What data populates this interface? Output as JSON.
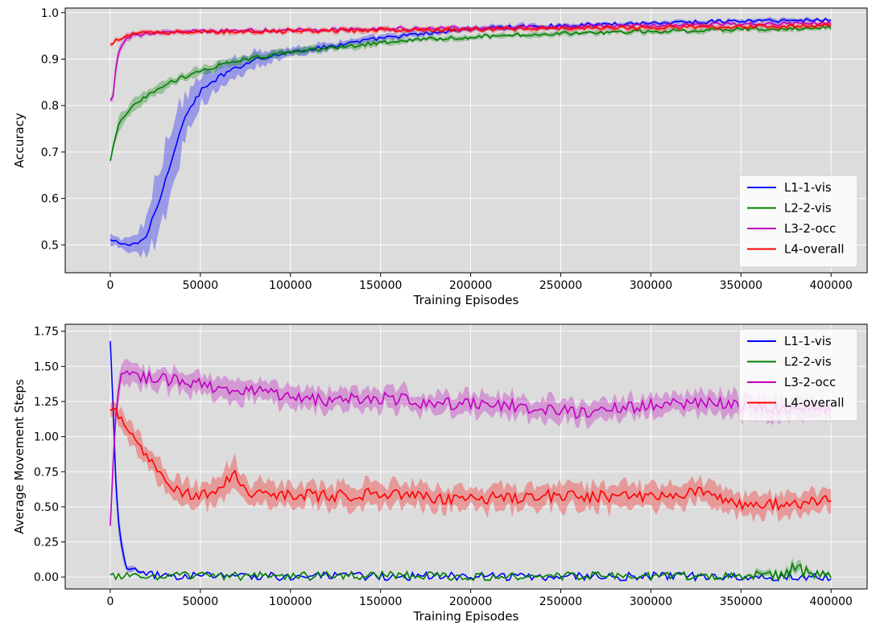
{
  "chart_data": [
    {
      "type": "line",
      "xlabel": "Training Episodes",
      "ylabel": "Accuracy",
      "xlim": [
        -25000,
        420000
      ],
      "ylim": [
        0.44,
        1.01
      ],
      "xticks": [
        0,
        50000,
        100000,
        150000,
        200000,
        250000,
        300000,
        350000,
        400000
      ],
      "yticks": [
        0.5,
        0.6,
        0.7,
        0.8,
        0.9,
        1.0
      ],
      "ytick_labels": [
        "0.5",
        "0.6",
        "0.7",
        "0.8",
        "0.9",
        "1.0"
      ],
      "grid": true,
      "legend_position": "lower-right",
      "series": [
        {
          "name": "L1-1-vis",
          "color": "#0000ff",
          "x": [
            0,
            5000,
            10000,
            15000,
            20000,
            25000,
            30000,
            35000,
            40000,
            45000,
            50000,
            60000,
            70000,
            80000,
            100000,
            125000,
            150000,
            175000,
            200000,
            225000,
            250000,
            275000,
            300000,
            325000,
            350000,
            375000,
            400000
          ],
          "y": [
            0.51,
            0.505,
            0.5,
            0.5,
            0.52,
            0.57,
            0.63,
            0.7,
            0.76,
            0.8,
            0.83,
            0.86,
            0.88,
            0.9,
            0.915,
            0.93,
            0.945,
            0.955,
            0.965,
            0.97,
            0.972,
            0.975,
            0.978,
            0.98,
            0.982,
            0.983,
            0.985
          ],
          "band": [
            0.01,
            0.01,
            0.015,
            0.02,
            0.04,
            0.07,
            0.08,
            0.07,
            0.05,
            0.04,
            0.03,
            0.025,
            0.02,
            0.018,
            0.01,
            0.008,
            0.006,
            0.005,
            0.005,
            0.005,
            0.004,
            0.004,
            0.004,
            0.004,
            0.004,
            0.004,
            0.004
          ]
        },
        {
          "name": "L2-2-vis",
          "color": "#008000",
          "x": [
            0,
            2000,
            5000,
            10000,
            20000,
            30000,
            40000,
            50000,
            60000,
            75000,
            100000,
            125000,
            150000,
            175000,
            200000,
            225000,
            250000,
            275000,
            300000,
            325000,
            350000,
            375000,
            400000
          ],
          "y": [
            0.68,
            0.72,
            0.76,
            0.79,
            0.82,
            0.845,
            0.86,
            0.875,
            0.885,
            0.9,
            0.915,
            0.925,
            0.935,
            0.942,
            0.948,
            0.952,
            0.955,
            0.958,
            0.96,
            0.962,
            0.964,
            0.966,
            0.967
          ],
          "band": [
            0.01,
            0.015,
            0.015,
            0.012,
            0.01,
            0.01,
            0.01,
            0.01,
            0.009,
            0.008,
            0.007,
            0.006,
            0.006,
            0.005,
            0.005,
            0.005,
            0.005,
            0.005,
            0.005,
            0.005,
            0.005,
            0.005,
            0.005
          ]
        },
        {
          "name": "L3-2-occ",
          "color": "#bf00bf",
          "x": [
            0,
            1500,
            3000,
            5000,
            8000,
            12000,
            20000,
            50000,
            100000,
            150000,
            200000,
            250000,
            300000,
            350000,
            400000
          ],
          "y": [
            0.81,
            0.82,
            0.88,
            0.92,
            0.94,
            0.95,
            0.955,
            0.96,
            0.962,
            0.965,
            0.967,
            0.97,
            0.972,
            0.975,
            0.977
          ],
          "band": [
            0.005,
            0.01,
            0.015,
            0.01,
            0.008,
            0.006,
            0.005,
            0.004,
            0.004,
            0.004,
            0.004,
            0.004,
            0.004,
            0.004,
            0.004
          ]
        },
        {
          "name": "L4-overall",
          "color": "#ff0000",
          "x": [
            0,
            3000,
            8000,
            15000,
            30000,
            50000,
            100000,
            150000,
            200000,
            250000,
            300000,
            350000,
            400000
          ],
          "y": [
            0.93,
            0.94,
            0.95,
            0.955,
            0.957,
            0.958,
            0.96,
            0.962,
            0.964,
            0.966,
            0.968,
            0.97,
            0.972
          ],
          "band": [
            0.005,
            0.005,
            0.005,
            0.005,
            0.005,
            0.005,
            0.005,
            0.005,
            0.005,
            0.005,
            0.005,
            0.005,
            0.005
          ]
        }
      ]
    },
    {
      "type": "line",
      "xlabel": "Training Episodes",
      "ylabel": "Average Movement Steps",
      "xlim": [
        -25000,
        420000
      ],
      "ylim": [
        -0.085,
        1.8
      ],
      "xticks": [
        0,
        50000,
        100000,
        150000,
        200000,
        250000,
        300000,
        350000,
        400000
      ],
      "yticks": [
        0.0,
        0.25,
        0.5,
        0.75,
        1.0,
        1.25,
        1.5,
        1.75
      ],
      "ytick_labels": [
        "0.00",
        "0.25",
        "0.50",
        "0.75",
        "1.00",
        "1.25",
        "1.50",
        "1.75"
      ],
      "grid": true,
      "legend_position": "upper-right",
      "series": [
        {
          "name": "L1-1-vis",
          "color": "#0000ff",
          "x": [
            0,
            1500,
            3000,
            5000,
            7000,
            10000,
            15000,
            20000,
            30000,
            40000,
            100000,
            200000,
            300000,
            400000
          ],
          "y": [
            1.67,
            1.2,
            0.7,
            0.35,
            0.15,
            0.06,
            0.03,
            0.015,
            0.01,
            0.008,
            0.006,
            0.005,
            0.005,
            0.005
          ],
          "band": [
            0.02,
            0.08,
            0.1,
            0.07,
            0.04,
            0.02,
            0.01,
            0.005,
            0.005,
            0.004,
            0.003,
            0.003,
            0.003,
            0.003
          ]
        },
        {
          "name": "L2-2-vis",
          "color": "#008000",
          "x": [
            0,
            50000,
            100000,
            150000,
            200000,
            250000,
            300000,
            350000,
            360000,
            370000,
            380000,
            390000,
            400000
          ],
          "y": [
            0.005,
            0.008,
            0.006,
            0.01,
            0.006,
            0.007,
            0.008,
            0.01,
            0.02,
            0.015,
            0.06,
            0.02,
            0.01
          ],
          "band": [
            0.005,
            0.005,
            0.005,
            0.005,
            0.005,
            0.005,
            0.005,
            0.01,
            0.02,
            0.02,
            0.05,
            0.02,
            0.01
          ]
        },
        {
          "name": "L3-2-occ",
          "color": "#bf00bf",
          "x": [
            0,
            2000,
            4000,
            7000,
            10000,
            20000,
            40000,
            60000,
            80000,
            100000,
            120000,
            140000,
            160000,
            180000,
            200000,
            220000,
            240000,
            260000,
            280000,
            300000,
            320000,
            340000,
            360000,
            380000,
            400000
          ],
          "y": [
            0.35,
            0.9,
            1.3,
            1.47,
            1.45,
            1.42,
            1.4,
            1.33,
            1.33,
            1.28,
            1.25,
            1.27,
            1.27,
            1.23,
            1.24,
            1.22,
            1.2,
            1.17,
            1.2,
            1.22,
            1.24,
            1.23,
            1.2,
            1.2,
            1.2
          ],
          "band": [
            0.05,
            0.1,
            0.1,
            0.08,
            0.07,
            0.07,
            0.07,
            0.07,
            0.07,
            0.07,
            0.07,
            0.07,
            0.07,
            0.07,
            0.07,
            0.07,
            0.07,
            0.07,
            0.07,
            0.07,
            0.07,
            0.07,
            0.07,
            0.07,
            0.07
          ]
        },
        {
          "name": "L4-overall",
          "color": "#ff0000",
          "x": [
            0,
            3000,
            6000,
            10000,
            15000,
            20000,
            30000,
            40000,
            50000,
            60000,
            68000,
            75000,
            100000,
            125000,
            150000,
            175000,
            200000,
            225000,
            250000,
            275000,
            300000,
            325000,
            350000,
            375000,
            400000
          ],
          "y": [
            1.17,
            1.2,
            1.15,
            1.05,
            0.95,
            0.85,
            0.7,
            0.6,
            0.58,
            0.6,
            0.75,
            0.6,
            0.58,
            0.58,
            0.6,
            0.57,
            0.55,
            0.57,
            0.58,
            0.57,
            0.56,
            0.6,
            0.52,
            0.52,
            0.55
          ],
          "band": [
            0.05,
            0.06,
            0.06,
            0.07,
            0.08,
            0.08,
            0.08,
            0.08,
            0.08,
            0.08,
            0.1,
            0.08,
            0.08,
            0.08,
            0.08,
            0.08,
            0.08,
            0.08,
            0.08,
            0.08,
            0.08,
            0.08,
            0.08,
            0.08,
            0.08
          ]
        }
      ]
    }
  ]
}
